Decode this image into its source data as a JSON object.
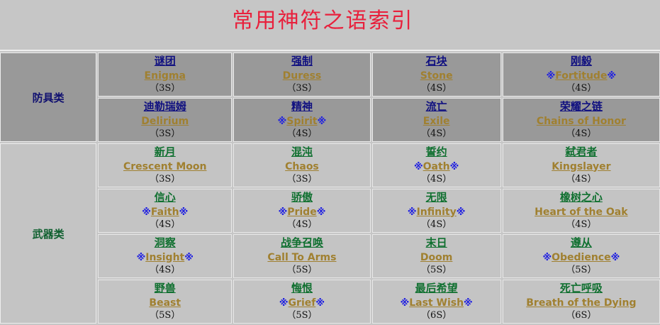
{
  "title": "常用神符之语索引",
  "star_symbol": "※",
  "sections": [
    {
      "category": "防具类",
      "rows": [
        [
          {
            "cn": "谜团",
            "en": "Enigma",
            "sockets": "（3S）",
            "star": false
          },
          {
            "cn": "强制",
            "en": "Duress",
            "sockets": "（3S）",
            "star": false
          },
          {
            "cn": "石块",
            "en": "Stone",
            "sockets": "（4S）",
            "star": false
          },
          {
            "cn": "刚毅",
            "en": "Fortitude",
            "sockets": "（4S）",
            "star": true
          }
        ],
        [
          {
            "cn": "迪勒瑞姆",
            "en": "Delirium",
            "sockets": "（3S）",
            "star": false
          },
          {
            "cn": "精神",
            "en": "Spirit",
            "sockets": "（4S）",
            "star": true
          },
          {
            "cn": "流亡",
            "en": "Exile",
            "sockets": "（4S）",
            "star": false
          },
          {
            "cn": "荣耀之链",
            "en": "Chains of Honor",
            "sockets": "（4S）",
            "star": false
          }
        ]
      ]
    },
    {
      "category": "武器类",
      "rows": [
        [
          {
            "cn": "新月",
            "en": "Crescent Moon",
            "sockets": "（3S）",
            "star": false
          },
          {
            "cn": "混沌",
            "en": "Chaos",
            "sockets": "（3S）",
            "star": false
          },
          {
            "cn": "誓约",
            "en": "Oath",
            "sockets": "（4S）",
            "star": true
          },
          {
            "cn": "弑君者",
            "en": "Kingslayer",
            "sockets": "（4S）",
            "star": false
          }
        ],
        [
          {
            "cn": "信心",
            "en": "Faith",
            "sockets": "（4S）",
            "star": true
          },
          {
            "cn": "骄傲",
            "en": "Pride",
            "sockets": "（4S）",
            "star": true
          },
          {
            "cn": "无限",
            "en": "Infinity",
            "sockets": "（4S）",
            "star": true
          },
          {
            "cn": "橡树之心",
            "en": "Heart of the Oak",
            "sockets": "（4S）",
            "star": false
          }
        ],
        [
          {
            "cn": "洞察",
            "en": "Insight",
            "sockets": "（4S）",
            "star": true
          },
          {
            "cn": "战争召唤",
            "en": "Call To Arms",
            "sockets": "（5S）",
            "star": false
          },
          {
            "cn": "末日",
            "en": "Doom",
            "sockets": "（5S）",
            "star": false
          },
          {
            "cn": "遵从",
            "en": "Obedience",
            "sockets": "（5S）",
            "star": true
          }
        ],
        [
          {
            "cn": "野兽",
            "en": "Beast",
            "sockets": "（5S）",
            "star": false
          },
          {
            "cn": "悔恨",
            "en": "Grief",
            "sockets": "（5S）",
            "star": true
          },
          {
            "cn": "最后希望",
            "en": "Last Wish",
            "sockets": "（6S）",
            "star": true
          },
          {
            "cn": "死亡呼吸",
            "en": "Breath of the Dying",
            "sockets": "（6S）",
            "star": false
          }
        ]
      ]
    }
  ]
}
